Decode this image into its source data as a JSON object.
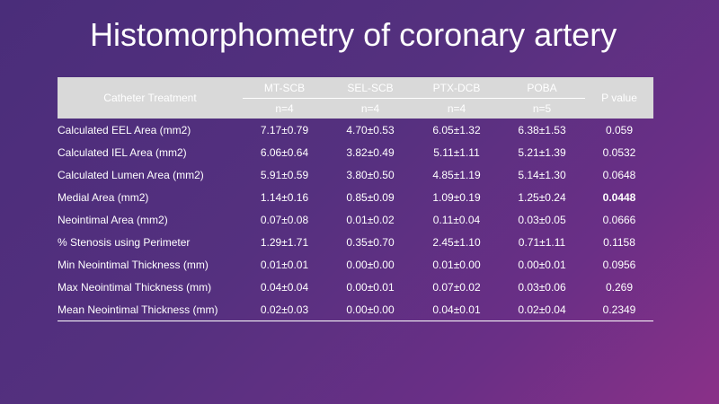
{
  "title": "Histomorphometry of coronary artery",
  "table": {
    "header_label": "Catheter Treatment",
    "p_header": "P value",
    "groups": [
      {
        "name": "MT-SCB",
        "n": "n=4"
      },
      {
        "name": "SEL-SCB",
        "n": "n=4"
      },
      {
        "name": "PTX-DCB",
        "n": "n=4"
      },
      {
        "name": "POBA",
        "n": "n=5"
      }
    ],
    "rows": [
      {
        "label": "Calculated EEL Area (mm2)",
        "values": [
          "7.17±0.79",
          "4.70±0.53",
          "6.05±1.32",
          "6.38±1.53"
        ],
        "p": "0.059",
        "p_bold": false
      },
      {
        "label": "Calculated IEL Area (mm2)",
        "values": [
          "6.06±0.64",
          "3.82±0.49",
          "5.11±1.11",
          "5.21±1.39"
        ],
        "p": "0.0532",
        "p_bold": false
      },
      {
        "label": "Calculated Lumen Area (mm2)",
        "values": [
          "5.91±0.59",
          "3.80±0.50",
          "4.85±1.19",
          "5.14±1.30"
        ],
        "p": "0.0648",
        "p_bold": false
      },
      {
        "label": "Medial Area (mm2)",
        "values": [
          "1.14±0.16",
          "0.85±0.09",
          "1.09±0.19",
          "1.25±0.24"
        ],
        "p": "0.0448",
        "p_bold": true
      },
      {
        "label": "Neointimal Area (mm2)",
        "values": [
          "0.07±0.08",
          "0.01±0.02",
          "0.11±0.04",
          "0.03±0.05"
        ],
        "p": "0.0666",
        "p_bold": false
      },
      {
        "label": "% Stenosis using Perimeter",
        "values": [
          "1.29±1.71",
          "0.35±0.70",
          "2.45±1.10",
          "0.71±1.11"
        ],
        "p": "0.1158",
        "p_bold": false
      },
      {
        "label": "Min Neointimal Thickness (mm)",
        "values": [
          "0.01±0.01",
          "0.00±0.00",
          "0.01±0.00",
          "0.00±0.01"
        ],
        "p": "0.0956",
        "p_bold": false
      },
      {
        "label": "Max Neointimal Thickness (mm)",
        "values": [
          "0.04±0.04",
          "0.00±0.01",
          "0.07±0.02",
          "0.03±0.06"
        ],
        "p": "0.269",
        "p_bold": false
      },
      {
        "label": "Mean Neointimal Thickness (mm)",
        "values": [
          "0.02±0.03",
          "0.00±0.00",
          "0.04±0.01",
          "0.02±0.04"
        ],
        "p": "0.2349",
        "p_bold": false
      }
    ]
  }
}
